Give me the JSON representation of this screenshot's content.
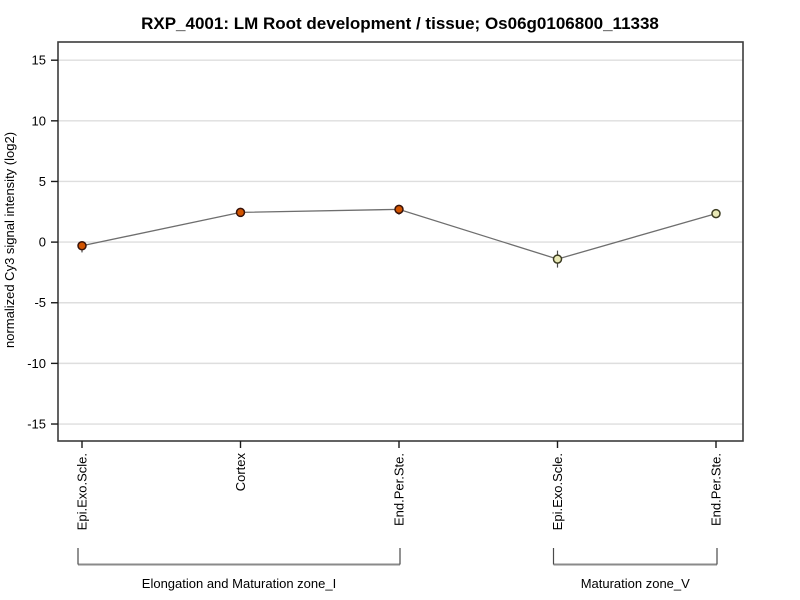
{
  "chart_data": {
    "type": "line",
    "title": "RXP_4001: LM Root development / tissue; Os06g0106800_11338",
    "ylabel": "normalized Cy3 signal intensity (log2)",
    "xlabel": "",
    "ylim": [
      -16.4,
      16.5
    ],
    "yticks": [
      15,
      10,
      5,
      0,
      -5,
      -10,
      -15
    ],
    "grid": true,
    "legend_position": "none",
    "categories": [
      "Epi.Exo.Scle.",
      "Cortex",
      "End.Per.Ste.",
      "Epi.Exo.Scle.",
      "End.Per.Ste."
    ],
    "series": [
      {
        "name": "normalized Cy3 signal intensity (log2)",
        "values": [
          -0.3,
          2.45,
          2.7,
          -1.4,
          2.35
        ],
        "error_low": [
          0.55,
          0.2,
          0.45,
          0.7,
          0.15
        ],
        "error_high": [
          0.15,
          0.2,
          0.15,
          0.7,
          0.15
        ],
        "point_fills": [
          "#d25400",
          "#d25400",
          "#d25400",
          "#e9e9b6",
          "#e9e9b6"
        ],
        "point_strokes": [
          "#38130a",
          "#38130a",
          "#38130a",
          "#3c3c22",
          "#3c3c22"
        ],
        "line_color": "#6e6e6e"
      }
    ],
    "group_brackets": [
      {
        "label": "Elongation and Maturation zone_I",
        "from_index": 0,
        "to_index": 2
      },
      {
        "label": "Maturation zone_V",
        "from_index": 3,
        "to_index": 4
      }
    ],
    "colors": {
      "frame": "#3c3c3c",
      "grid": "#dedede",
      "tick": "#1a1a1a",
      "text": "#000000",
      "bracket_h": "#8a8a8a",
      "bracket_v": "#4a4a4a",
      "error_bar": "#4a4a4a"
    }
  }
}
